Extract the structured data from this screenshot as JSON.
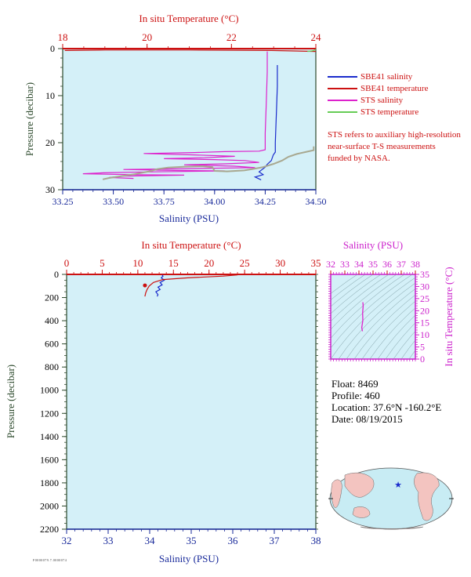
{
  "chart_data": [
    {
      "type": "line",
      "top_axis": {
        "label": "In situ Temperature (°C)",
        "range": [
          18,
          24
        ],
        "ticks": [
          "18",
          "20",
          "22",
          "24"
        ]
      },
      "bottom_axis": {
        "label": "Salinity (PSU)",
        "range": [
          33.25,
          34.5
        ],
        "ticks": [
          "33.25",
          "33.50",
          "33.75",
          "34.00",
          "34.25",
          "34.50"
        ]
      },
      "left_axis": {
        "label": "Pressure (decibar)",
        "range": [
          0,
          30
        ],
        "reversed": true,
        "ticks": [
          "0",
          "10",
          "20",
          "30"
        ]
      },
      "legend_position": "right",
      "series": [
        {
          "name": "SBE41 salinity",
          "axis": "salinity",
          "color": "#1a2bcc",
          "points": [
            [
              34.31,
              3.5
            ],
            [
              34.31,
              8
            ],
            [
              34.305,
              14
            ],
            [
              34.3,
              20
            ],
            [
              34.3,
              22
            ],
            [
              34.29,
              22.6
            ],
            [
              34.28,
              23.8
            ],
            [
              34.26,
              24.6
            ],
            [
              34.25,
              25.2
            ],
            [
              34.22,
              26.2
            ],
            [
              34.24,
              26.8
            ],
            [
              34.2,
              27.3
            ],
            [
              34.23,
              27.9
            ]
          ]
        },
        {
          "name": "SBE41 temperature",
          "axis": "temperature",
          "color": "#cc1111",
          "points": [
            [
              24.0,
              0.6
            ],
            [
              22.95,
              0.4
            ],
            [
              21.0,
              0.3
            ],
            [
              19.0,
              0.3
            ],
            [
              18.05,
              0.4
            ]
          ]
        },
        {
          "name": "STS salinity",
          "axis": "salinity",
          "color": "#dd22cc",
          "points": [
            [
              34.26,
              0.6
            ],
            [
              34.26,
              5
            ],
            [
              34.255,
              12
            ],
            [
              34.25,
              18
            ],
            [
              34.25,
              21.5
            ],
            [
              34.22,
              21.8
            ],
            [
              34.05,
              21.9
            ],
            [
              33.9,
              22.1
            ],
            [
              33.65,
              22.3
            ],
            [
              33.9,
              22.6
            ],
            [
              34.1,
              22.9
            ],
            [
              33.95,
              23.2
            ],
            [
              33.75,
              23.4
            ],
            [
              34.0,
              23.6
            ],
            [
              34.15,
              23.8
            ],
            [
              34.22,
              24.2
            ],
            [
              34.05,
              24.5
            ],
            [
              33.85,
              24.7
            ],
            [
              34.1,
              25.0
            ],
            [
              34.2,
              25.3
            ],
            [
              33.9,
              25.5
            ],
            [
              33.55,
              25.7
            ],
            [
              33.8,
              25.9
            ],
            [
              34.05,
              26.0
            ],
            [
              33.7,
              26.2
            ],
            [
              33.45,
              26.4
            ],
            [
              33.35,
              26.6
            ],
            [
              33.6,
              26.8
            ],
            [
              33.85,
              26.9
            ],
            [
              33.55,
              27.1
            ],
            [
              33.48,
              27.4
            ],
            [
              33.6,
              27.6
            ]
          ]
        },
        {
          "name": "STS temperature",
          "axis": "temperature",
          "color": "#66cc55",
          "points": [
            [
              24.0,
              0.2
            ],
            [
              23.95,
              0.4
            ],
            [
              23.9,
              0.5
            ],
            [
              23.8,
              0.6
            ]
          ]
        },
        {
          "axis": "temperature",
          "color": "#a8a890",
          "points": [
            [
              23.95,
              20.8
            ],
            [
              23.95,
              21.6
            ],
            [
              23.75,
              22.0
            ],
            [
              23.55,
              22.4
            ],
            [
              23.35,
              23.0
            ],
            [
              23.2,
              23.8
            ],
            [
              23.0,
              24.5
            ],
            [
              22.75,
              25.2
            ],
            [
              22.5,
              25.6
            ],
            [
              22.3,
              25.9
            ],
            [
              21.9,
              26.1
            ],
            [
              21.6,
              26.0
            ],
            [
              21.55,
              25.2
            ],
            [
              21.3,
              25.0
            ],
            [
              20.9,
              25.1
            ],
            [
              20.5,
              25.3
            ],
            [
              20.25,
              25.6
            ],
            [
              20.05,
              26.1
            ],
            [
              19.7,
              26.7
            ],
            [
              19.4,
              27.1
            ],
            [
              19.1,
              27.5
            ],
            [
              18.95,
              27.8
            ]
          ]
        }
      ],
      "note": "STS refers to auxiliary high-resolution near-surface T-S measurements funded by NASA."
    },
    {
      "type": "line",
      "top_axis": {
        "label": "In situ Temperature (°C)",
        "range": [
          0,
          35
        ],
        "ticks": [
          "0",
          "5",
          "10",
          "15",
          "20",
          "25",
          "30",
          "35"
        ]
      },
      "bottom_axis": {
        "label": "Salinity (PSU)",
        "range": [
          32,
          38
        ],
        "ticks": [
          "32",
          "33",
          "34",
          "35",
          "36",
          "37",
          "38"
        ]
      },
      "left_axis": {
        "label": "Pressure (decibar)",
        "range": [
          0,
          2200
        ],
        "reversed": true,
        "ticks": [
          "0",
          "200",
          "400",
          "600",
          "800",
          "1000",
          "1200",
          "1400",
          "1600",
          "1800",
          "2000",
          "2200"
        ]
      },
      "series": [
        {
          "axis": "salinity",
          "color": "#1a2bcc",
          "points": [
            [
              34.3,
              5
            ],
            [
              34.32,
              15
            ],
            [
              34.28,
              30
            ],
            [
              34.35,
              50
            ],
            [
              34.25,
              70
            ],
            [
              34.3,
              90
            ],
            [
              34.2,
              110
            ],
            [
              34.25,
              130
            ],
            [
              34.15,
              150
            ],
            [
              34.2,
              175
            ],
            [
              34.18,
              190
            ]
          ]
        },
        {
          "axis": "temperature",
          "color": "#cc1111",
          "points": [
            [
              24.0,
              5
            ],
            [
              22.0,
              15
            ],
            [
              17.0,
              30
            ],
            [
              13.5,
              45
            ],
            [
              12.2,
              70
            ],
            [
              11.6,
              100
            ],
            [
              11.3,
              130
            ],
            [
              11.1,
              160
            ],
            [
              11.0,
              190
            ]
          ]
        }
      ]
    },
    {
      "type": "scatter",
      "top_axis": {
        "label": "Salinity (PSU)",
        "range": [
          32,
          38
        ],
        "ticks": [
          "32",
          "33",
          "34",
          "35",
          "36",
          "37",
          "38"
        ]
      },
      "right_axis": {
        "label": "In situ Temperature (°C)",
        "range": [
          0,
          35
        ],
        "ticks": [
          "0",
          "5",
          "10",
          "15",
          "20",
          "25",
          "30",
          "35"
        ]
      },
      "series": [
        {
          "color": "#dd22cc",
          "points": [
            [
              34.25,
              11.5
            ],
            [
              34.2,
              13
            ],
            [
              34.28,
              16
            ],
            [
              34.26,
              19
            ],
            [
              34.3,
              22
            ],
            [
              34.28,
              23.5
            ]
          ]
        }
      ]
    }
  ],
  "float_info": {
    "float": "Float: 8469",
    "profile": "Profile: 460",
    "location": "Location: 37.6°N -160.2°E",
    "date": "Date: 08/19/2015"
  },
  "map": {
    "marker_lat": 37.6,
    "marker_lon": -160.2
  },
  "footer_code": "F0000079.7.0000074"
}
